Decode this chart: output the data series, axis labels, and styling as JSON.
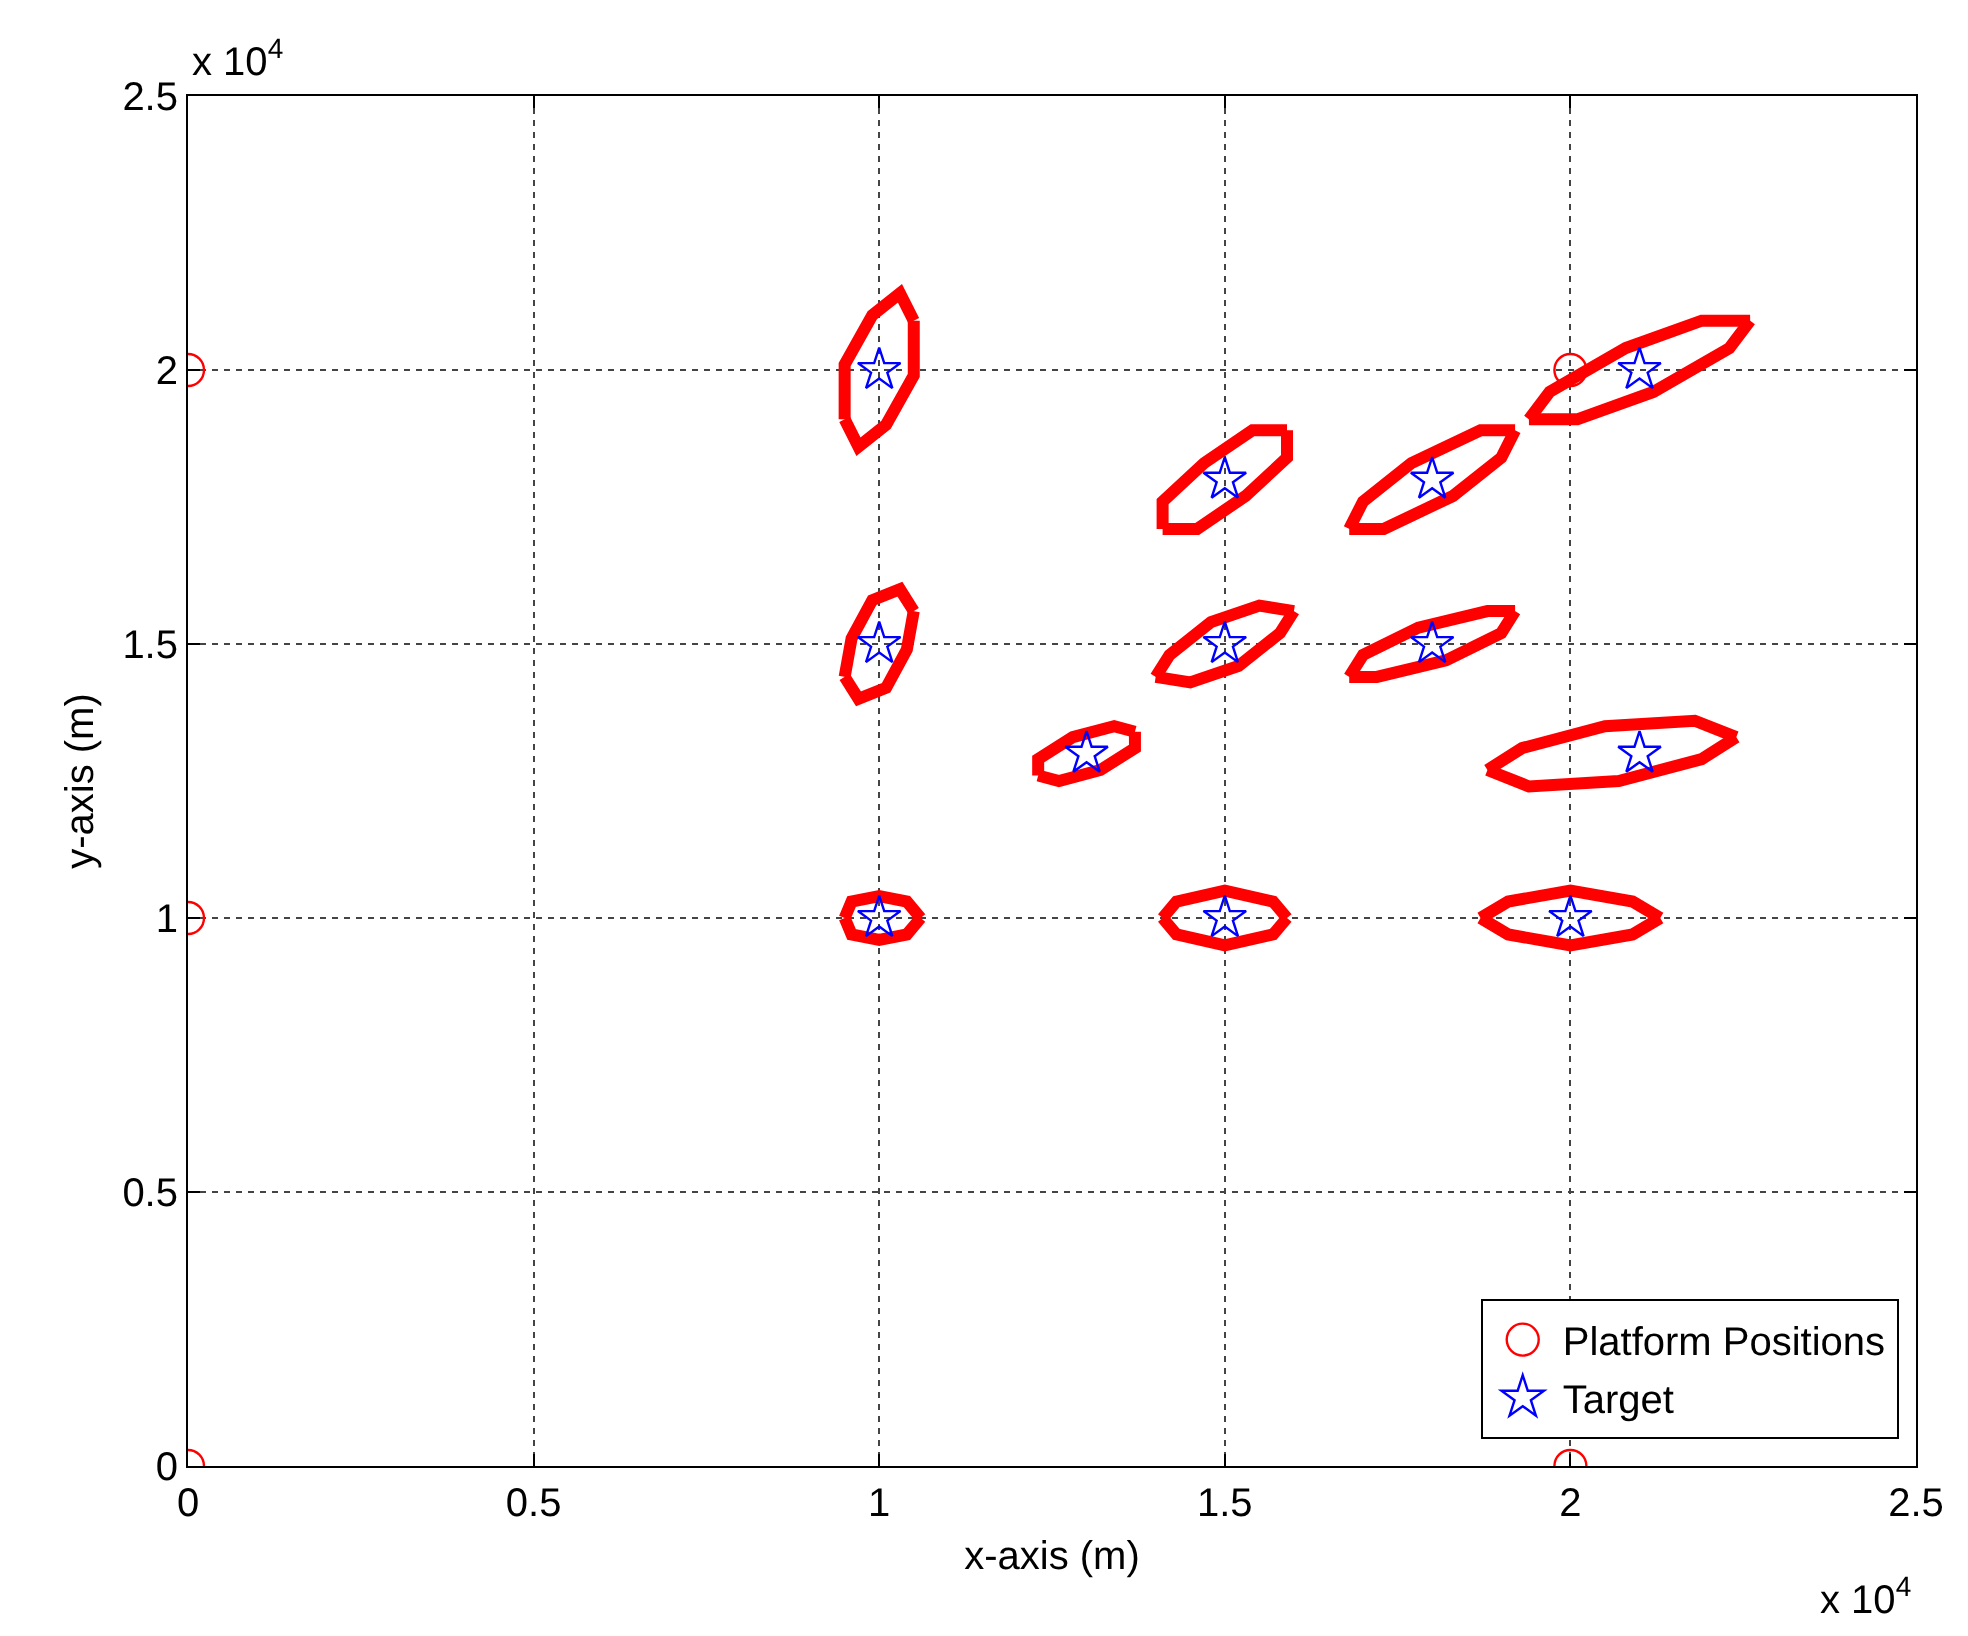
{
  "chart_data": {
    "type": "scatter",
    "xlabel": "x-axis (m)",
    "ylabel": "y-axis (m)",
    "xlim": [
      0,
      2.5
    ],
    "ylim": [
      0,
      2.5
    ],
    "xticks": [
      0,
      0.5,
      1,
      1.5,
      2,
      2.5
    ],
    "yticks": [
      0,
      0.5,
      1,
      1.5,
      2,
      2.5
    ],
    "grid": true,
    "legend": "bottom right",
    "annotations": [
      "x 10$^{4}$",
      "x 10$^{4}$"
    ],
    "series": [
      {
        "type": "line",
        "color": "#ff0000",
        "marker": "none",
        "x": [
          0.95,
          0.95,
          0.99,
          1.03,
          1.05
        ],
        "values": [
          1.91,
          2.01,
          2.1,
          2.14,
          2.09
        ]
      },
      {
        "type": "line",
        "color": "#ff0000",
        "marker": "none",
        "x": [
          0.95,
          0.97,
          1.01,
          1.05,
          1.05
        ],
        "values": [
          1.91,
          1.86,
          1.9,
          1.99,
          2.09
        ]
      },
      {
        "type": "line",
        "color": "#ff0000",
        "marker": "none",
        "x": [
          0.95,
          0.96,
          0.99,
          1.03,
          1.05
        ],
        "values": [
          1.44,
          1.51,
          1.58,
          1.6,
          1.56
        ]
      },
      {
        "type": "line",
        "color": "#ff0000",
        "marker": "none",
        "x": [
          0.95,
          0.97,
          1.01,
          1.04,
          1.05
        ],
        "values": [
          1.44,
          1.4,
          1.42,
          1.49,
          1.56
        ]
      },
      {
        "type": "line",
        "color": "#ff0000",
        "marker": "none",
        "x": [
          0.95,
          0.96,
          1.0,
          1.04,
          1.06
        ],
        "values": [
          1.0,
          1.03,
          1.04,
          1.03,
          1.0
        ]
      },
      {
        "type": "line",
        "color": "#ff0000",
        "marker": "none",
        "x": [
          0.95,
          0.96,
          1.0,
          1.04,
          1.06
        ],
        "values": [
          1.0,
          0.97,
          0.96,
          0.97,
          1.0
        ]
      },
      {
        "type": "line",
        "color": "#ff0000",
        "marker": "none",
        "x": [
          1.23,
          1.23,
          1.28,
          1.34,
          1.37
        ],
        "values": [
          1.26,
          1.29,
          1.33,
          1.35,
          1.34
        ]
      },
      {
        "type": "line",
        "color": "#ff0000",
        "marker": "none",
        "x": [
          1.23,
          1.26,
          1.32,
          1.37,
          1.37
        ],
        "values": [
          1.26,
          1.25,
          1.27,
          1.31,
          1.34
        ]
      },
      {
        "type": "line",
        "color": "#ff0000",
        "marker": "none",
        "x": [
          1.41,
          1.41,
          1.47,
          1.54,
          1.59
        ],
        "values": [
          1.71,
          1.76,
          1.83,
          1.89,
          1.89
        ]
      },
      {
        "type": "line",
        "color": "#ff0000",
        "marker": "none",
        "x": [
          1.41,
          1.46,
          1.53,
          1.59,
          1.59
        ],
        "values": [
          1.71,
          1.71,
          1.77,
          1.84,
          1.89
        ]
      },
      {
        "type": "line",
        "color": "#ff0000",
        "marker": "none",
        "x": [
          1.4,
          1.42,
          1.48,
          1.55,
          1.6
        ],
        "values": [
          1.44,
          1.48,
          1.54,
          1.57,
          1.56
        ]
      },
      {
        "type": "line",
        "color": "#ff0000",
        "marker": "none",
        "x": [
          1.4,
          1.45,
          1.52,
          1.58,
          1.6
        ],
        "values": [
          1.44,
          1.43,
          1.46,
          1.52,
          1.56
        ]
      },
      {
        "type": "line",
        "color": "#ff0000",
        "marker": "none",
        "x": [
          1.41,
          1.43,
          1.5,
          1.57,
          1.59
        ],
        "values": [
          1.0,
          1.03,
          1.05,
          1.03,
          1.0
        ]
      },
      {
        "type": "line",
        "color": "#ff0000",
        "marker": "none",
        "x": [
          1.41,
          1.43,
          1.5,
          1.57,
          1.59
        ],
        "values": [
          1.0,
          0.97,
          0.95,
          0.97,
          1.0
        ]
      },
      {
        "type": "line",
        "color": "#ff0000",
        "marker": "none",
        "x": [
          1.68,
          1.7,
          1.77,
          1.87,
          1.92
        ],
        "values": [
          1.71,
          1.76,
          1.83,
          1.89,
          1.89
        ]
      },
      {
        "type": "line",
        "color": "#ff0000",
        "marker": "none",
        "x": [
          1.68,
          1.73,
          1.83,
          1.9,
          1.92
        ],
        "values": [
          1.71,
          1.71,
          1.77,
          1.84,
          1.89
        ]
      },
      {
        "type": "line",
        "color": "#ff0000",
        "marker": "none",
        "x": [
          1.68,
          1.7,
          1.78,
          1.88,
          1.92
        ],
        "values": [
          1.44,
          1.48,
          1.53,
          1.56,
          1.56
        ]
      },
      {
        "type": "line",
        "color": "#ff0000",
        "marker": "none",
        "x": [
          1.68,
          1.72,
          1.82,
          1.9,
          1.92
        ],
        "values": [
          1.44,
          1.44,
          1.47,
          1.52,
          1.56
        ]
      },
      {
        "type": "line",
        "color": "#ff0000",
        "marker": "none",
        "x": [
          1.94,
          1.97,
          2.08,
          2.19,
          2.26
        ],
        "values": [
          1.91,
          1.96,
          2.04,
          2.09,
          2.09
        ]
      },
      {
        "type": "line",
        "color": "#ff0000",
        "marker": "none",
        "x": [
          1.94,
          2.01,
          2.12,
          2.23,
          2.26
        ],
        "values": [
          1.91,
          1.91,
          1.96,
          2.04,
          2.09
        ]
      },
      {
        "type": "line",
        "color": "#ff0000",
        "marker": "none",
        "x": [
          1.88,
          1.93,
          2.05,
          2.18,
          2.24
        ],
        "values": [
          1.27,
          1.31,
          1.35,
          1.36,
          1.33
        ]
      },
      {
        "type": "line",
        "color": "#ff0000",
        "marker": "none",
        "x": [
          1.88,
          1.94,
          2.07,
          2.19,
          2.24
        ],
        "values": [
          1.27,
          1.24,
          1.25,
          1.29,
          1.33
        ]
      },
      {
        "type": "line",
        "color": "#ff0000",
        "marker": "none",
        "x": [
          1.87,
          1.91,
          2.0,
          2.09,
          2.13
        ],
        "values": [
          1.0,
          1.03,
          1.05,
          1.03,
          1.0
        ]
      },
      {
        "type": "line",
        "color": "#ff0000",
        "marker": "none",
        "x": [
          1.87,
          1.91,
          2.0,
          2.09,
          2.13
        ],
        "values": [
          1.0,
          0.97,
          0.95,
          0.97,
          1.0
        ]
      },
      {
        "name": "Platform Positions",
        "color": "#ff0000",
        "marker": "circle",
        "x": [
          0,
          0,
          0,
          2,
          2
        ],
        "values": [
          0,
          1,
          2,
          2,
          0
        ]
      },
      {
        "name": "Target",
        "color": "#0000ff",
        "marker": "star",
        "x": [
          1,
          1,
          1,
          1.3,
          1.5,
          1.5,
          1.5,
          1.8,
          1.8,
          2.1,
          2.1,
          2
        ],
        "values": [
          2,
          1.5,
          1,
          1.3,
          1.8,
          1.5,
          1,
          1.8,
          1.5,
          2,
          1.3,
          1
        ]
      }
    ]
  }
}
